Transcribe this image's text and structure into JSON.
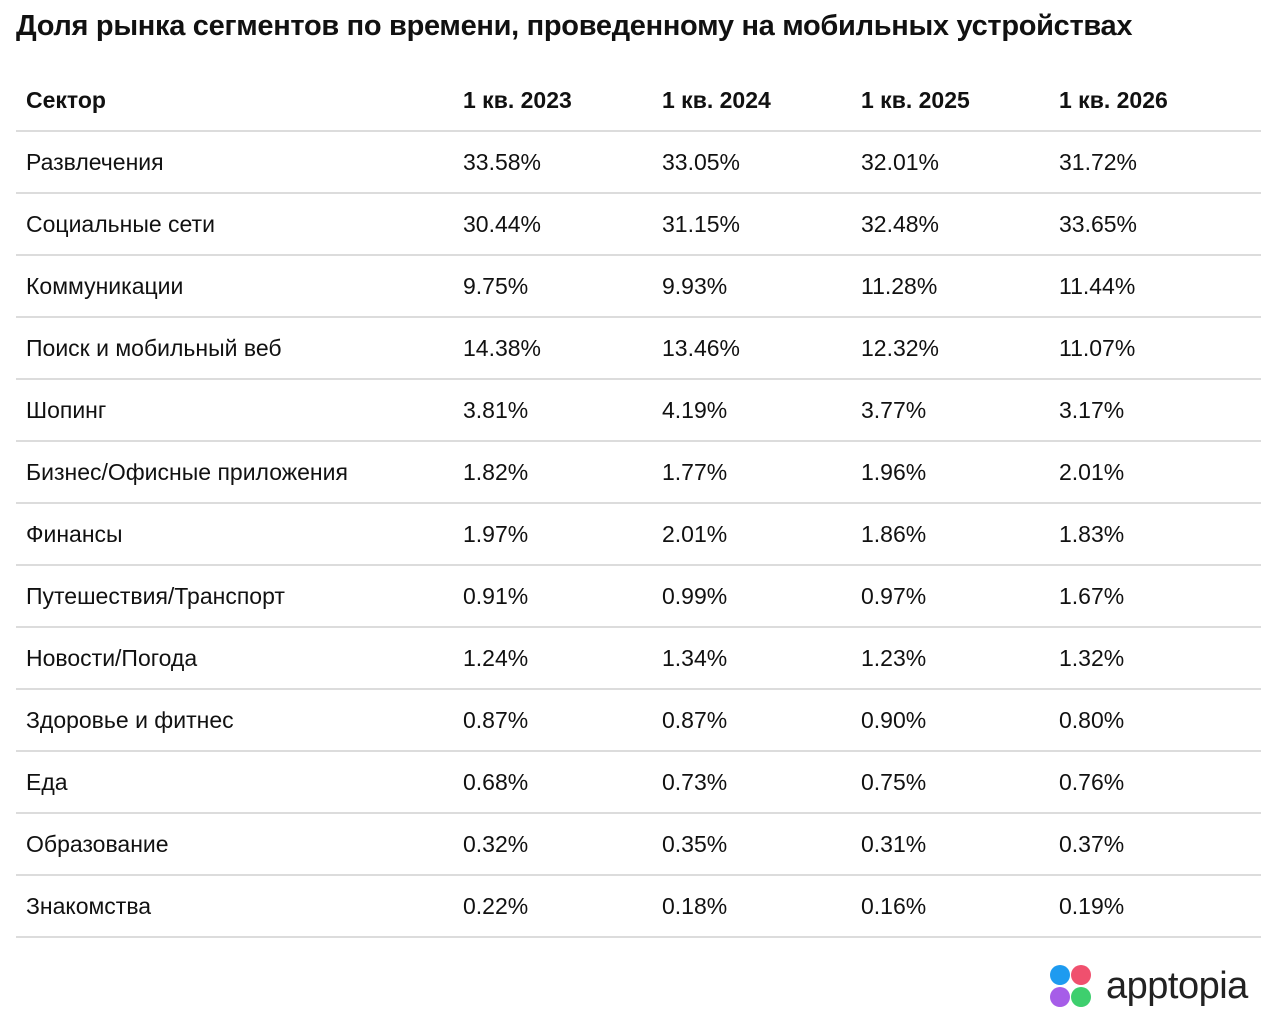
{
  "chart_data": {
    "type": "table",
    "title": "Доля рынка сегментов по времени, проведенному на мобильных устройствах",
    "columns": [
      "Сектор",
      "1 кв. 2023",
      "1 кв. 2024",
      "1 кв. 2025",
      "1 кв. 2026"
    ],
    "rows": [
      [
        "Развлечения",
        "33.58%",
        "33.05%",
        "32.01%",
        "31.72%"
      ],
      [
        "Социальные сети",
        "30.44%",
        "31.15%",
        "32.48%",
        "33.65%"
      ],
      [
        "Коммуникации",
        "9.75%",
        "9.93%",
        "11.28%",
        "11.44%"
      ],
      [
        "Поиск и мобильный веб",
        "14.38%",
        "13.46%",
        "12.32%",
        "11.07%"
      ],
      [
        "Шопинг",
        "3.81%",
        "4.19%",
        "3.77%",
        "3.17%"
      ],
      [
        "Бизнес/Офисные приложения",
        "1.82%",
        "1.77%",
        "1.96%",
        "2.01%"
      ],
      [
        "Финансы",
        "1.97%",
        "2.01%",
        "1.86%",
        "1.83%"
      ],
      [
        "Путешествия/Транспорт",
        "0.91%",
        "0.99%",
        "0.97%",
        "1.67%"
      ],
      [
        "Новости/Погода",
        "1.24%",
        "1.34%",
        "1.23%",
        "1.32%"
      ],
      [
        "Здоровье и фитнес",
        "0.87%",
        "0.87%",
        "0.90%",
        "0.80%"
      ],
      [
        "Еда",
        "0.68%",
        "0.73%",
        "0.75%",
        "0.76%"
      ],
      [
        "Образование",
        "0.32%",
        "0.35%",
        "0.31%",
        "0.37%"
      ],
      [
        "Знакомства",
        "0.22%",
        "0.18%",
        "0.16%",
        "0.19%"
      ]
    ]
  },
  "logo": {
    "text": "apptopia",
    "colors": [
      "#1e9bf0",
      "#f0506e",
      "#a65de8",
      "#3ecf6e"
    ]
  }
}
